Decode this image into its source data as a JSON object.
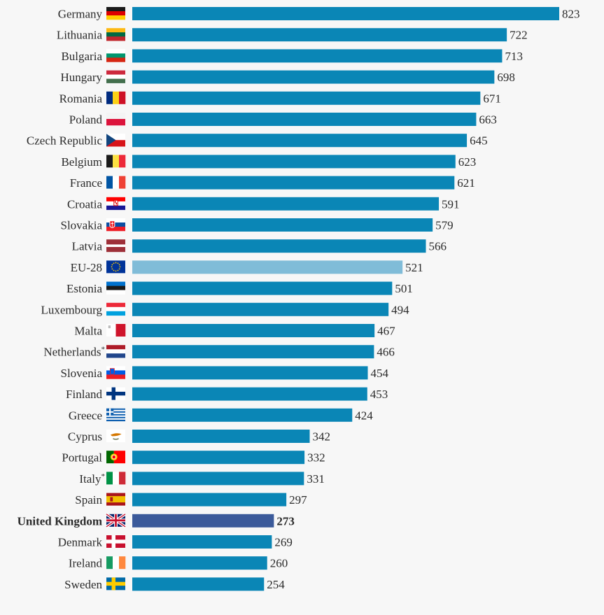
{
  "chart_data": {
    "type": "bar",
    "orientation": "horizontal",
    "categories": [
      "Germany",
      "Lithuania",
      "Bulgaria",
      "Hungary",
      "Romania",
      "Poland",
      "Czech Republic",
      "Belgium",
      "France",
      "Croatia",
      "Slovakia",
      "Latvia",
      "EU-28",
      "Estonia",
      "Luxembourg",
      "Malta",
      "Netherlands",
      "Slovenia",
      "Finland",
      "Greece",
      "Cyprus",
      "Portugal",
      "Italy",
      "Spain",
      "United Kingdom",
      "Denmark",
      "Ireland",
      "Sweden"
    ],
    "values": [
      823,
      722,
      713,
      698,
      671,
      663,
      645,
      623,
      621,
      591,
      579,
      566,
      521,
      501,
      494,
      467,
      466,
      454,
      453,
      424,
      342,
      332,
      331,
      297,
      273,
      269,
      260,
      254
    ],
    "footnote_marks": {
      "Netherlands": "*",
      "Italy": "*"
    },
    "flags": [
      "germany-flag",
      "lithuania-flag",
      "bulgaria-flag",
      "hungary-flag",
      "romania-flag",
      "poland-flag",
      "czech-republic-flag",
      "belgium-flag",
      "france-flag",
      "croatia-flag",
      "slovakia-flag",
      "latvia-flag",
      "eu-flag",
      "estonia-flag",
      "luxembourg-flag",
      "malta-flag",
      "netherlands-flag",
      "slovenia-flag",
      "finland-flag",
      "greece-flag",
      "cyprus-flag",
      "portugal-flag",
      "italy-flag",
      "spain-flag",
      "united-kingdom-flag",
      "denmark-flag",
      "ireland-flag",
      "sweden-flag"
    ],
    "highlight": {
      "EU-28": "#80bcd8",
      "United Kingdom": "#3b5a9a"
    },
    "bold_category": "United Kingdom",
    "bar_color": "#0a86b6",
    "xlim": [
      0,
      823
    ],
    "title": "",
    "xlabel": "",
    "ylabel": "",
    "grid": false,
    "legend": "none"
  }
}
